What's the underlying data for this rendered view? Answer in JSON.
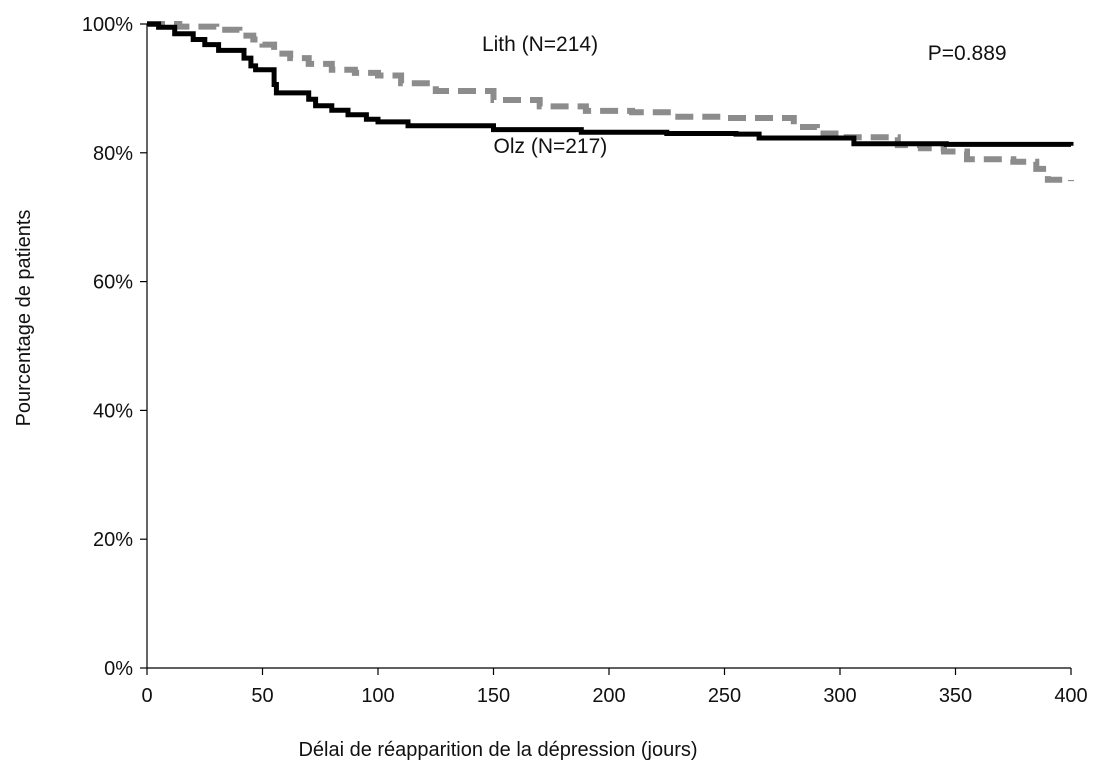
{
  "chart_data": {
    "type": "line",
    "title": "",
    "xlabel": "Délai de réapparition de la dépression (jours)",
    "ylabel": "Pourcentage de patients",
    "xlim": [
      0,
      400
    ],
    "ylim": [
      0,
      100
    ],
    "x_ticks": [
      0,
      50,
      100,
      150,
      200,
      250,
      300,
      350,
      400
    ],
    "x_tick_labels": [
      "0",
      "50",
      "100",
      "150",
      "200",
      "250",
      "300",
      "350",
      "400"
    ],
    "y_ticks": [
      0,
      20,
      40,
      60,
      80,
      100
    ],
    "y_tick_labels": [
      "0%",
      "20%",
      "40%",
      "60%",
      "80%",
      "100%"
    ],
    "grid": false,
    "step": true,
    "series": [
      {
        "name": "Lith (N=214)",
        "color": "#8c8c8c",
        "dash": true,
        "points": [
          [
            0,
            100
          ],
          [
            14,
            99.6
          ],
          [
            30,
            99.1
          ],
          [
            40,
            98.2
          ],
          [
            46,
            97.6
          ],
          [
            50,
            96.8
          ],
          [
            55,
            95.4
          ],
          [
            62,
            94.7
          ],
          [
            70,
            93.8
          ],
          [
            80,
            92.9
          ],
          [
            90,
            92.4
          ],
          [
            100,
            92.0
          ],
          [
            110,
            90.8
          ],
          [
            125,
            89.6
          ],
          [
            150,
            88.2
          ],
          [
            170,
            87.2
          ],
          [
            190,
            86.5
          ],
          [
            210,
            86.3
          ],
          [
            230,
            85.6
          ],
          [
            250,
            85.4
          ],
          [
            265,
            85.4
          ],
          [
            280,
            84.0
          ],
          [
            290,
            83.0
          ],
          [
            300,
            82.4
          ],
          [
            315,
            82.4
          ],
          [
            325,
            81.2
          ],
          [
            335,
            80.7
          ],
          [
            345,
            80.2
          ],
          [
            355,
            79.0
          ],
          [
            375,
            78.6
          ],
          [
            385,
            77.5
          ],
          [
            390,
            75.8
          ],
          [
            400,
            75.6
          ]
        ]
      },
      {
        "name": "Olz (N=217)",
        "color": "#000000",
        "dash": false,
        "points": [
          [
            0,
            100
          ],
          [
            5,
            99.5
          ],
          [
            12,
            98.5
          ],
          [
            20,
            97.6
          ],
          [
            25,
            96.8
          ],
          [
            31,
            95.9
          ],
          [
            42,
            94.7
          ],
          [
            45,
            93.5
          ],
          [
            47,
            92.9
          ],
          [
            55,
            90.6
          ],
          [
            56,
            89.3
          ],
          [
            70,
            88.3
          ],
          [
            73,
            87.3
          ],
          [
            80,
            86.6
          ],
          [
            87,
            85.9
          ],
          [
            95,
            85.2
          ],
          [
            100,
            84.8
          ],
          [
            113,
            84.2
          ],
          [
            125,
            84.2
          ],
          [
            150,
            83.6
          ],
          [
            188,
            83.2
          ],
          [
            225,
            83.0
          ],
          [
            255,
            82.9
          ],
          [
            265,
            82.3
          ],
          [
            290,
            82.3
          ],
          [
            306,
            81.4
          ],
          [
            312,
            81.4
          ],
          [
            325,
            81.4
          ],
          [
            346,
            81.3
          ],
          [
            400,
            81.1
          ]
        ]
      }
    ],
    "annotations": [
      {
        "text": "Lith (N=214)",
        "at": [
          145,
          95.8
        ]
      },
      {
        "text": "Olz (N=217)",
        "at": [
          150,
          80.0
        ]
      },
      {
        "text": "P=0.889",
        "at": [
          338,
          94.4
        ]
      }
    ]
  }
}
